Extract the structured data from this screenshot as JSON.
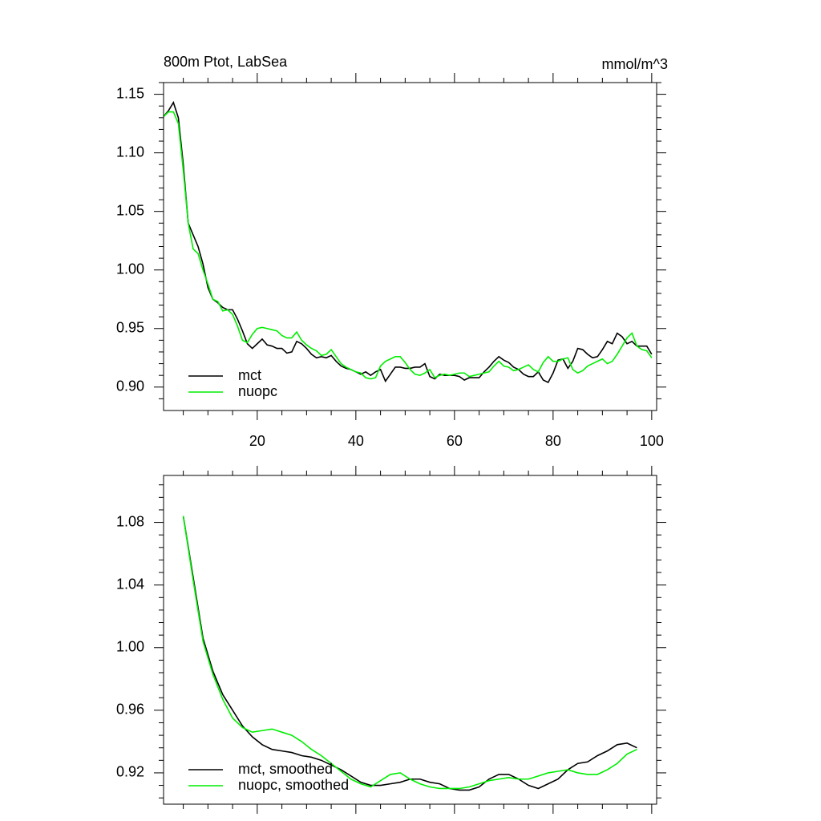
{
  "chart_data": [
    {
      "type": "line",
      "title": "800m Ptot, LabSea",
      "units": "mmol/m^3",
      "x": [
        1,
        2,
        3,
        4,
        5,
        6,
        7,
        8,
        9,
        10,
        11,
        12,
        13,
        14,
        15,
        16,
        17,
        18,
        19,
        20,
        21,
        22,
        23,
        24,
        25,
        26,
        27,
        28,
        29,
        30,
        31,
        32,
        33,
        34,
        35,
        36,
        37,
        38,
        39,
        40,
        41,
        42,
        43,
        44,
        45,
        46,
        47,
        48,
        49,
        50,
        51,
        52,
        53,
        54,
        55,
        56,
        57,
        58,
        59,
        60,
        61,
        62,
        63,
        64,
        65,
        66,
        67,
        68,
        69,
        70,
        71,
        72,
        73,
        74,
        75,
        76,
        77,
        78,
        79,
        80,
        81,
        82,
        83,
        84,
        85,
        86,
        87,
        88,
        89,
        90,
        91,
        92,
        93,
        94,
        95,
        96,
        97,
        98,
        99,
        100
      ],
      "series": [
        {
          "name": "mct",
          "color": "#000000",
          "values": [
            1.131,
            1.136,
            1.143,
            1.13,
            1.09,
            1.04,
            1.03,
            1.02,
            1.005,
            0.985,
            0.975,
            0.972,
            0.968,
            0.966,
            0.966,
            0.958,
            0.948,
            0.937,
            0.933,
            0.937,
            0.941,
            0.936,
            0.935,
            0.933,
            0.933,
            0.929,
            0.93,
            0.939,
            0.937,
            0.933,
            0.928,
            0.925,
            0.926,
            0.925,
            0.927,
            0.922,
            0.918,
            0.916,
            0.915,
            0.913,
            0.911,
            0.913,
            0.91,
            0.913,
            0.915,
            0.905,
            0.911,
            0.917,
            0.917,
            0.916,
            0.916,
            0.917,
            0.917,
            0.92,
            0.909,
            0.907,
            0.911,
            0.91,
            0.91,
            0.91,
            0.909,
            0.906,
            0.908,
            0.908,
            0.908,
            0.913,
            0.917,
            0.922,
            0.926,
            0.923,
            0.921,
            0.917,
            0.915,
            0.911,
            0.909,
            0.909,
            0.913,
            0.906,
            0.904,
            0.912,
            0.923,
            0.924,
            0.916,
            0.922,
            0.933,
            0.932,
            0.928,
            0.925,
            0.926,
            0.932,
            0.939,
            0.937,
            0.946,
            0.943,
            0.937,
            0.939,
            0.935,
            0.935,
            0.935,
            0.928
          ]
        },
        {
          "name": "nuopc",
          "color": "#00ee00",
          "values": [
            1.131,
            1.135,
            1.135,
            1.125,
            1.085,
            1.04,
            1.018,
            1.014,
            1.0,
            0.988,
            0.975,
            0.973,
            0.965,
            0.966,
            0.962,
            0.952,
            0.94,
            0.938,
            0.945,
            0.95,
            0.951,
            0.95,
            0.949,
            0.948,
            0.944,
            0.942,
            0.942,
            0.947,
            0.94,
            0.936,
            0.933,
            0.931,
            0.927,
            0.928,
            0.932,
            0.926,
            0.92,
            0.917,
            0.915,
            0.913,
            0.912,
            0.908,
            0.907,
            0.908,
            0.918,
            0.922,
            0.924,
            0.926,
            0.926,
            0.921,
            0.915,
            0.911,
            0.91,
            0.912,
            0.915,
            0.908,
            0.91,
            0.911,
            0.91,
            0.911,
            0.912,
            0.912,
            0.909,
            0.91,
            0.911,
            0.912,
            0.913,
            0.918,
            0.922,
            0.918,
            0.917,
            0.914,
            0.915,
            0.917,
            0.919,
            0.915,
            0.913,
            0.921,
            0.926,
            0.922,
            0.922,
            0.924,
            0.925,
            0.915,
            0.912,
            0.914,
            0.918,
            0.92,
            0.922,
            0.924,
            0.92,
            0.922,
            0.928,
            0.935,
            0.942,
            0.946,
            0.935,
            0.932,
            0.931,
            0.925
          ]
        }
      ],
      "xlim": [
        1,
        101
      ],
      "xticks": [
        20,
        40,
        60,
        80,
        100
      ],
      "xtick_labels": true,
      "ylim": [
        0.88,
        1.16
      ],
      "yticks": [
        {
          "value": 0.9,
          "label": "0.90"
        },
        {
          "value": 0.95,
          "label": "0.95"
        },
        {
          "value": 1.0,
          "label": "1.00"
        },
        {
          "value": 1.05,
          "label": "1.05"
        },
        {
          "value": 1.1,
          "label": "1.10"
        },
        {
          "value": 1.15,
          "label": "1.15"
        }
      ],
      "legend": "lower left"
    },
    {
      "type": "line",
      "x": [
        5,
        7,
        9,
        11,
        13,
        15,
        17,
        19,
        21,
        23,
        25,
        27,
        29,
        31,
        33,
        35,
        37,
        39,
        41,
        43,
        45,
        47,
        49,
        51,
        53,
        55,
        57,
        59,
        61,
        63,
        65,
        67,
        69,
        71,
        73,
        75,
        77,
        79,
        81,
        83,
        85,
        87,
        89,
        91,
        93,
        95,
        97
      ],
      "series": [
        {
          "name": "mct, smoothed",
          "color": "#000000",
          "values": [
            1.084,
            1.045,
            1.006,
            0.985,
            0.97,
            0.96,
            0.95,
            0.943,
            0.938,
            0.935,
            0.934,
            0.933,
            0.931,
            0.93,
            0.928,
            0.925,
            0.922,
            0.918,
            0.914,
            0.912,
            0.912,
            0.913,
            0.914,
            0.916,
            0.916,
            0.914,
            0.913,
            0.91,
            0.909,
            0.909,
            0.911,
            0.916,
            0.919,
            0.919,
            0.916,
            0.912,
            0.91,
            0.913,
            0.916,
            0.922,
            0.926,
            0.927,
            0.931,
            0.934,
            0.938,
            0.939,
            0.936
          ]
        },
        {
          "name": "nuopc, smoothed",
          "color": "#00ee00",
          "values": [
            1.084,
            1.043,
            1.004,
            0.983,
            0.967,
            0.955,
            0.949,
            0.946,
            0.947,
            0.948,
            0.946,
            0.944,
            0.94,
            0.935,
            0.931,
            0.926,
            0.921,
            0.916,
            0.913,
            0.911,
            0.915,
            0.919,
            0.92,
            0.916,
            0.913,
            0.911,
            0.91,
            0.91,
            0.91,
            0.911,
            0.913,
            0.915,
            0.916,
            0.917,
            0.916,
            0.916,
            0.918,
            0.92,
            0.921,
            0.922,
            0.92,
            0.919,
            0.919,
            0.922,
            0.926,
            0.932,
            0.935
          ]
        }
      ],
      "xlim": [
        1,
        101
      ],
      "xticks": [
        20,
        40,
        60,
        80,
        100
      ],
      "xtick_labels": false,
      "ylim": [
        0.9,
        1.11
      ],
      "yticks": [
        {
          "value": 0.92,
          "label": "0.92"
        },
        {
          "value": 0.96,
          "label": "0.96"
        },
        {
          "value": 1.0,
          "label": "1.00"
        },
        {
          "value": 1.04,
          "label": "1.04"
        },
        {
          "value": 1.08,
          "label": "1.08"
        }
      ],
      "legend": "lower left"
    }
  ]
}
